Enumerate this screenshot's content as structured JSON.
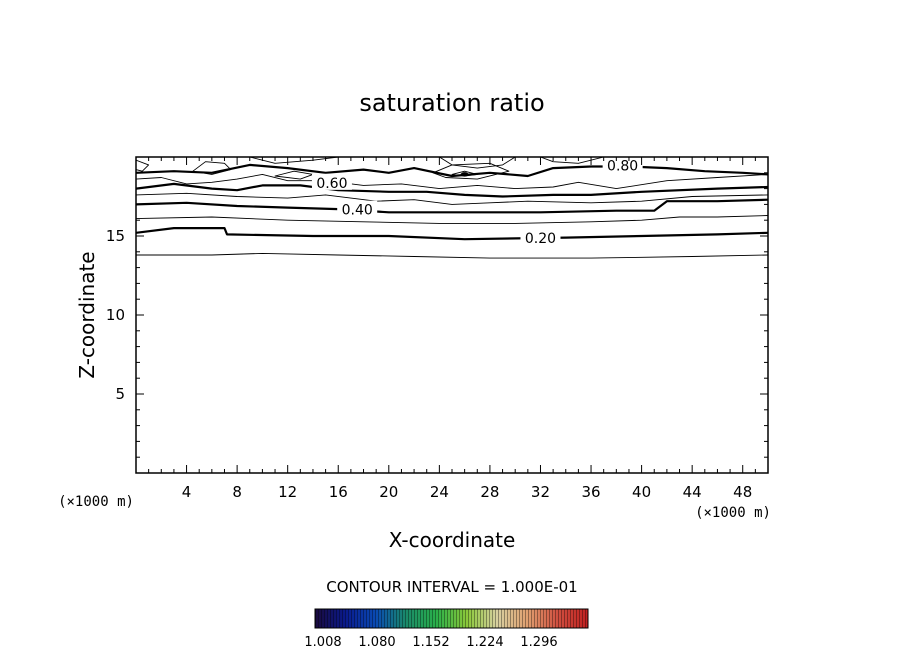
{
  "chart_data": {
    "type": "contour",
    "title": "saturation ratio",
    "xlabel": "X-coordinate",
    "ylabel": "Z-coordinate",
    "x_unit": "(×1000 m)",
    "x_unit_right": "(×1000 m)",
    "xlim": [
      0,
      50
    ],
    "ylim": [
      0,
      20
    ],
    "x_ticks": [
      4,
      8,
      12,
      16,
      20,
      24,
      28,
      32,
      36,
      40,
      44,
      48
    ],
    "y_ticks": [
      5,
      10,
      15
    ],
    "contour_interval_text": "CONTOUR INTERVAL = 1.000E-01",
    "contour_levels": [
      0.1,
      0.2,
      0.3,
      0.4,
      0.5,
      0.6,
      0.7,
      0.8,
      0.9
    ],
    "contour_labels": [
      {
        "text": "0.20",
        "x": 32.0,
        "y": 14.8
      },
      {
        "text": "0.40",
        "x": 17.5,
        "y": 16.6
      },
      {
        "text": "0.60",
        "x": 15.5,
        "y": 18.3
      },
      {
        "text": "0.80",
        "x": 38.5,
        "y": 19.4
      }
    ],
    "contours": [
      {
        "level": 0.1,
        "bold": false,
        "points": [
          [
            0,
            13.8
          ],
          [
            6,
            13.8
          ],
          [
            10,
            13.9
          ],
          [
            16,
            13.8
          ],
          [
            22,
            13.7
          ],
          [
            28,
            13.6
          ],
          [
            36,
            13.6
          ],
          [
            44,
            13.7
          ],
          [
            50,
            13.8
          ]
        ]
      },
      {
        "level": 0.2,
        "bold": true,
        "points": [
          [
            0,
            15.2
          ],
          [
            3,
            15.5
          ],
          [
            7,
            15.5
          ],
          [
            7.2,
            15.1
          ],
          [
            14,
            15.0
          ],
          [
            20,
            15.0
          ],
          [
            26,
            14.8
          ],
          [
            34,
            14.9
          ],
          [
            40,
            15.0
          ],
          [
            46,
            15.1
          ],
          [
            50,
            15.2
          ]
        ]
      },
      {
        "level": 0.3,
        "bold": false,
        "points": [
          [
            0,
            16.1
          ],
          [
            6,
            16.2
          ],
          [
            12,
            16.0
          ],
          [
            18,
            15.9
          ],
          [
            24,
            15.8
          ],
          [
            30,
            15.8
          ],
          [
            36,
            15.9
          ],
          [
            40,
            16.0
          ],
          [
            43,
            16.2
          ],
          [
            46,
            16.2
          ],
          [
            50,
            16.3
          ]
        ]
      },
      {
        "level": 0.4,
        "bold": true,
        "points": [
          [
            0,
            17.0
          ],
          [
            4,
            17.1
          ],
          [
            8,
            16.9
          ],
          [
            12,
            16.8
          ],
          [
            16,
            16.7
          ],
          [
            20,
            16.5
          ],
          [
            26,
            16.5
          ],
          [
            32,
            16.5
          ],
          [
            38,
            16.6
          ],
          [
            41,
            16.6
          ],
          [
            42,
            17.2
          ],
          [
            46,
            17.2
          ],
          [
            50,
            17.3
          ]
        ]
      },
      {
        "level": 0.5,
        "bold": false,
        "points": [
          [
            0,
            17.6
          ],
          [
            4,
            17.7
          ],
          [
            8,
            17.5
          ],
          [
            12,
            17.4
          ],
          [
            15,
            17.6
          ],
          [
            19,
            17.2
          ],
          [
            22,
            17.3
          ],
          [
            25,
            17.0
          ],
          [
            28,
            17.1
          ],
          [
            31,
            17.2
          ],
          [
            36,
            17.1
          ],
          [
            40,
            17.2
          ],
          [
            44,
            17.5
          ],
          [
            50,
            17.6
          ]
        ]
      },
      {
        "level": 0.6,
        "bold": true,
        "points": [
          [
            0,
            18.0
          ],
          [
            3,
            18.3
          ],
          [
            6,
            18.0
          ],
          [
            8,
            17.9
          ],
          [
            10,
            18.2
          ],
          [
            13,
            18.2
          ],
          [
            16,
            17.9
          ],
          [
            20,
            17.8
          ],
          [
            23,
            17.8
          ],
          [
            26,
            17.6
          ],
          [
            29,
            17.5
          ],
          [
            33,
            17.6
          ],
          [
            36,
            17.6
          ],
          [
            40,
            17.8
          ],
          [
            46,
            18.0
          ],
          [
            50,
            18.1
          ]
        ]
      },
      {
        "level": 0.7,
        "bold": false,
        "points": [
          [
            0,
            18.6
          ],
          [
            2,
            18.7
          ],
          [
            4,
            18.3
          ],
          [
            6,
            18.4
          ],
          [
            8,
            18.6
          ],
          [
            10,
            18.9
          ],
          [
            12,
            18.5
          ],
          [
            15,
            18.5
          ],
          [
            18,
            18.2
          ],
          [
            21,
            18.3
          ],
          [
            24,
            18.0
          ],
          [
            27,
            18.2
          ],
          [
            30,
            18.0
          ],
          [
            33,
            18.1
          ],
          [
            35,
            18.4
          ],
          [
            38,
            18.0
          ],
          [
            42,
            18.5
          ],
          [
            46,
            18.7
          ],
          [
            50,
            18.9
          ]
        ]
      },
      {
        "level": 0.8,
        "bold": true,
        "points": [
          [
            0,
            19.0
          ],
          [
            3,
            19.1
          ],
          [
            6,
            19.0
          ],
          [
            9,
            19.5
          ],
          [
            12,
            19.3
          ],
          [
            15,
            19.0
          ],
          [
            18,
            19.2
          ],
          [
            20,
            19.0
          ],
          [
            22,
            19.3
          ],
          [
            25,
            18.8
          ],
          [
            28,
            19.0
          ],
          [
            31,
            18.8
          ],
          [
            33,
            19.3
          ],
          [
            36,
            19.4
          ],
          [
            39,
            19.4
          ],
          [
            42,
            19.3
          ],
          [
            45,
            19.1
          ],
          [
            48,
            19.0
          ],
          [
            50,
            18.9
          ]
        ]
      },
      {
        "level": 0.9,
        "bold": false,
        "points": [
          [
            9,
            20.0
          ],
          [
            11,
            19.6
          ],
          [
            14,
            19.8
          ],
          [
            16,
            20.0
          ]
        ]
      },
      {
        "level": 0.9,
        "bold": false,
        "points": [
          [
            24,
            20.0
          ],
          [
            25,
            19.5
          ],
          [
            27,
            19.3
          ],
          [
            29,
            19.5
          ],
          [
            30,
            20.0
          ]
        ]
      },
      {
        "level": 0.9,
        "bold": false,
        "points": [
          [
            32,
            20.0
          ],
          [
            33,
            19.7
          ],
          [
            35,
            19.6
          ],
          [
            37,
            20.0
          ]
        ]
      },
      {
        "level": 0.8,
        "bold": false,
        "closed": true,
        "points": [
          [
            4.5,
            19.1
          ],
          [
            5.5,
            19.7
          ],
          [
            7,
            19.6
          ],
          [
            7.5,
            19.2
          ],
          [
            6,
            18.9
          ],
          [
            4.5,
            19.1
          ]
        ]
      },
      {
        "level": 0.7,
        "bold": false,
        "closed": true,
        "points": [
          [
            11,
            18.8
          ],
          [
            12.5,
            19.1
          ],
          [
            14,
            18.9
          ],
          [
            13,
            18.6
          ],
          [
            11,
            18.8
          ]
        ]
      },
      {
        "level": 0.9,
        "bold": false,
        "closed": true,
        "points": [
          [
            25,
            18.9
          ],
          [
            26,
            19.1
          ],
          [
            27,
            18.9
          ],
          [
            26,
            18.8
          ],
          [
            25,
            18.9
          ]
        ]
      },
      {
        "level": 0.9,
        "bold": false,
        "closed": true,
        "points": [
          [
            23.5,
            19.0
          ],
          [
            25,
            19.5
          ],
          [
            28,
            19.6
          ],
          [
            29.5,
            19.1
          ],
          [
            27,
            18.6
          ],
          [
            24.5,
            18.7
          ],
          [
            23.5,
            19.0
          ]
        ]
      },
      {
        "level": 0.6,
        "bold": false,
        "closed": true,
        "points": [
          [
            0,
            19.8
          ],
          [
            1,
            19.5
          ],
          [
            0.5,
            19.1
          ],
          [
            0,
            19.2
          ]
        ]
      }
    ],
    "colorbar": {
      "labels": [
        "1.008",
        "1.080",
        "1.152",
        "1.224",
        "1.296"
      ],
      "colors": [
        "#1a0a3c",
        "#0a1a8c",
        "#0a4ab4",
        "#1a8a6a",
        "#2ab04a",
        "#8ac83a",
        "#d8d0a0",
        "#e0a070",
        "#d05040",
        "#c02020"
      ]
    }
  }
}
